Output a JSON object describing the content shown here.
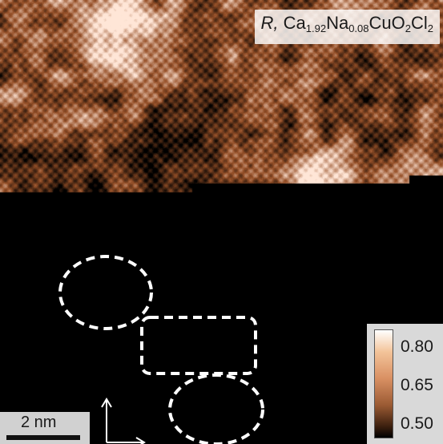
{
  "figure": {
    "title": {
      "prefix": "R,",
      "formula": [
        {
          "text": "Ca",
          "sub": "1.92"
        },
        {
          "text": "Na",
          "sub": "0.08"
        },
        {
          "text": "CuO",
          "sub": "2"
        },
        {
          "text": "Cl",
          "sub": "2"
        }
      ]
    },
    "colorbar": {
      "ticks": [
        "0.80",
        "0.65",
        "0.50"
      ],
      "range": [
        0.5,
        0.85
      ]
    },
    "scale_bar": {
      "label": "2 nm"
    },
    "colors": {
      "low": "#000000",
      "mid": "#b8704a",
      "high": "#ffffff",
      "annotation": "#ffffff"
    }
  }
}
